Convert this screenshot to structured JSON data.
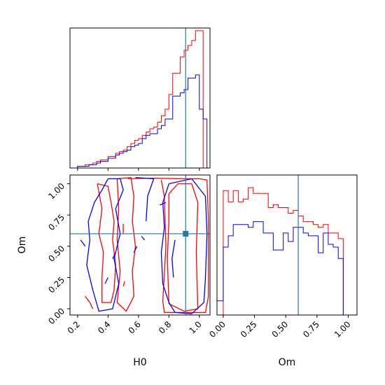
{
  "chart_data": {
    "type": "corner",
    "parameters": [
      "H0",
      "Om"
    ],
    "truths": {
      "H0": 0.91,
      "Om": 0.6
    },
    "colors": {
      "series_a": "#ff0000",
      "series_b": "#0000ff",
      "truth": "#1f77b4"
    },
    "axes": {
      "H0": {
        "label": "H0",
        "range": [
          0.15,
          1.07
        ],
        "ticks": [
          0.2,
          0.4,
          0.6,
          0.8,
          1.0
        ],
        "tick_labels": [
          "0.2",
          "0.4",
          "0.6",
          "0.8",
          "1.0"
        ]
      },
      "Om": {
        "label": "Om",
        "range": [
          -0.05,
          1.07
        ],
        "ticks": [
          0.0,
          0.25,
          0.5,
          0.75,
          1.0
        ],
        "tick_labels": [
          "0.00",
          "0.25",
          "0.50",
          "0.75",
          "1.00"
        ]
      }
    },
    "hist_H0": {
      "bin_edges": [
        0.15,
        0.175,
        0.2,
        0.225,
        0.25,
        0.275,
        0.3,
        0.325,
        0.35,
        0.375,
        0.4,
        0.425,
        0.45,
        0.475,
        0.5,
        0.525,
        0.55,
        0.575,
        0.6,
        0.625,
        0.65,
        0.675,
        0.7,
        0.725,
        0.75,
        0.775,
        0.8,
        0.825,
        0.85,
        0.875,
        0.9,
        0.925,
        0.95,
        0.975,
        1.0,
        1.025,
        1.05,
        1.07
      ],
      "series": [
        {
          "color": "red",
          "counts": [
            0,
            0,
            1,
            1,
            2,
            2,
            3,
            4,
            5,
            5,
            7,
            7,
            9,
            10,
            11,
            13,
            15,
            17,
            18,
            20,
            22,
            24,
            25,
            28,
            32,
            36,
            45,
            58,
            58,
            68,
            72,
            75,
            78,
            84,
            84,
            0,
            0
          ]
        },
        {
          "color": "blue",
          "counts": [
            0,
            0,
            1,
            1,
            1,
            2,
            2,
            3,
            4,
            4,
            6,
            6,
            8,
            9,
            10,
            11,
            13,
            14,
            15,
            18,
            20,
            21,
            21,
            24,
            26,
            30,
            30,
            44,
            44,
            46,
            48,
            55,
            55,
            57,
            36,
            30,
            0
          ]
        }
      ]
    },
    "hist_Om": {
      "bin_edges": [
        -0.05,
        0.0,
        0.04,
        0.08,
        0.12,
        0.16,
        0.2,
        0.24,
        0.28,
        0.32,
        0.36,
        0.4,
        0.44,
        0.48,
        0.52,
        0.56,
        0.6,
        0.64,
        0.68,
        0.72,
        0.76,
        0.8,
        0.84,
        0.88,
        0.92,
        0.96,
        1.0,
        1.07
      ],
      "series": [
        {
          "color": "red",
          "counts": [
            0,
            88,
            80,
            88,
            80,
            82,
            90,
            86,
            86,
            86,
            76,
            78,
            76,
            76,
            72,
            74,
            70,
            66,
            66,
            64,
            62,
            64,
            58,
            58,
            54,
            0,
            0
          ]
        },
        {
          "color": "blue",
          "counts": [
            10,
            48,
            56,
            64,
            64,
            64,
            62,
            66,
            66,
            58,
            58,
            46,
            46,
            58,
            52,
            62,
            62,
            58,
            56,
            56,
            44,
            58,
            50,
            48,
            40,
            0,
            0
          ]
        }
      ]
    },
    "contours_2d": [
      {
        "color": "red",
        "paths": [
          [
            [
              0.53,
              1.04
            ],
            [
              0.7,
              1.045
            ],
            [
              0.88,
              1.04
            ],
            [
              1.0,
              1.04
            ],
            [
              1.05,
              1.03
            ],
            [
              1.06,
              0.7
            ],
            [
              1.06,
              0.1
            ],
            [
              1.04,
              -0.03
            ],
            [
              0.77,
              -0.03
            ],
            [
              0.76,
              0.06
            ],
            [
              0.78,
              0.5
            ],
            [
              0.77,
              0.9
            ],
            [
              0.75,
              1.03
            ]
          ],
          [
            [
              0.95,
              1.0
            ],
            [
              0.99,
              0.85
            ],
            [
              0.98,
              0.45
            ],
            [
              0.99,
              0.0
            ],
            [
              0.9,
              -0.02
            ],
            [
              0.8,
              0.04
            ],
            [
              0.79,
              0.4
            ],
            [
              0.8,
              0.7
            ],
            [
              0.8,
              0.92
            ],
            [
              0.86,
              1.0
            ],
            [
              0.95,
              1.0
            ]
          ],
          [
            [
              0.33,
              1.0
            ],
            [
              0.4,
              0.98
            ],
            [
              0.42,
              0.85
            ],
            [
              0.44,
              0.7
            ],
            [
              0.43,
              0.55
            ],
            [
              0.45,
              0.35
            ],
            [
              0.44,
              0.15
            ],
            [
              0.42,
              0.05
            ],
            [
              0.36,
              0.05
            ],
            [
              0.36,
              0.25
            ],
            [
              0.37,
              0.45
            ],
            [
              0.34,
              0.6
            ],
            [
              0.36,
              0.8
            ],
            [
              0.33,
              1.0
            ]
          ],
          [
            [
              0.46,
              1.04
            ],
            [
              0.55,
              1.05
            ],
            [
              0.57,
              0.9
            ],
            [
              0.56,
              0.7
            ],
            [
              0.58,
              0.5
            ],
            [
              0.56,
              0.3
            ],
            [
              0.57,
              0.1
            ],
            [
              0.52,
              -0.02
            ],
            [
              0.46,
              0.05
            ],
            [
              0.48,
              0.3
            ],
            [
              0.46,
              0.55
            ],
            [
              0.47,
              0.8
            ],
            [
              0.46,
              1.04
            ]
          ],
          [
            [
              0.25,
              0.1
            ],
            [
              0.28,
              0.05
            ],
            [
              0.3,
              0.0
            ]
          ],
          [
            [
              0.5,
              0.68
            ],
            [
              0.5,
              0.6
            ]
          ],
          [
            [
              0.51,
              0.22
            ],
            [
              0.5,
              0.18
            ]
          ]
        ]
      },
      {
        "color": "blue",
        "paths": [
          [
            [
              0.4,
              1.04
            ],
            [
              0.48,
              1.04
            ],
            [
              0.5,
              0.95
            ],
            [
              0.45,
              0.8
            ],
            [
              0.48,
              0.6
            ],
            [
              0.44,
              0.4
            ],
            [
              0.47,
              0.2
            ],
            [
              0.43,
              0.0
            ],
            [
              0.34,
              -0.02
            ],
            [
              0.3,
              0.15
            ],
            [
              0.26,
              0.35
            ],
            [
              0.28,
              0.55
            ],
            [
              0.27,
              0.7
            ],
            [
              0.31,
              0.85
            ],
            [
              0.36,
              0.95
            ],
            [
              0.4,
              1.04
            ]
          ],
          [
            [
              0.58,
              1.05
            ],
            [
              0.7,
              1.04
            ],
            [
              0.66,
              0.9
            ],
            [
              0.65,
              0.7
            ]
          ],
          [
            [
              0.8,
              1.0
            ],
            [
              0.95,
              1.04
            ],
            [
              1.04,
              0.9
            ],
            [
              1.05,
              0.6
            ],
            [
              1.04,
              0.25
            ],
            [
              1.03,
              0.05
            ],
            [
              0.95,
              -0.04
            ],
            [
              0.84,
              -0.03
            ],
            [
              0.8,
              0.05
            ],
            [
              0.76,
              0.2
            ],
            [
              0.75,
              0.45
            ],
            [
              0.77,
              0.65
            ],
            [
              0.76,
              0.85
            ],
            [
              0.8,
              1.0
            ]
          ],
          [
            [
              0.84,
              0.55
            ],
            [
              0.82,
              0.4
            ],
            [
              0.83,
              0.25
            ]
          ],
          [
            [
              0.74,
              0.83
            ],
            [
              0.78,
              0.85
            ]
          ],
          [
            [
              0.22,
              0.55
            ],
            [
              0.25,
              0.5
            ]
          ],
          [
            [
              0.57,
              0.45
            ],
            [
              0.59,
              0.5
            ]
          ],
          [
            [
              0.45,
              0.45
            ],
            [
              0.43,
              0.4
            ]
          ],
          [
            [
              0.38,
              0.2
            ],
            [
              0.4,
              0.25
            ]
          ],
          [
            [
              0.62,
              0.58
            ],
            [
              0.64,
              0.55
            ]
          ]
        ]
      }
    ]
  }
}
